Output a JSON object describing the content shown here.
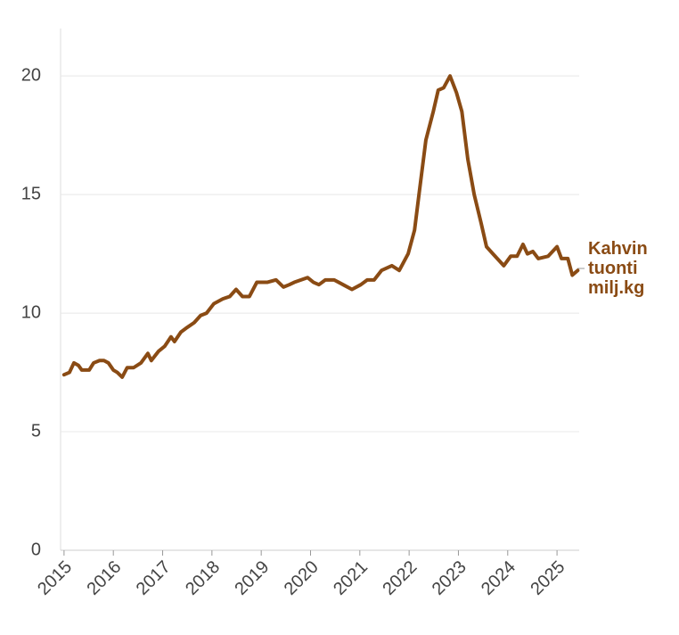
{
  "chart_data": {
    "type": "line",
    "x": [
      2015.0,
      2015.11,
      2015.2,
      2015.29,
      2015.36,
      2015.51,
      2015.6,
      2015.72,
      2015.81,
      2015.9,
      2016.0,
      2016.08,
      2016.18,
      2016.28,
      2016.41,
      2016.56,
      2016.7,
      2016.77,
      2016.92,
      2017.04,
      2017.17,
      2017.24,
      2017.37,
      2017.5,
      2017.64,
      2017.77,
      2017.89,
      2018.04,
      2018.22,
      2018.36,
      2018.49,
      2018.62,
      2018.76,
      2018.91,
      2019.12,
      2019.3,
      2019.45,
      2019.57,
      2019.67,
      2019.94,
      2020.06,
      2020.17,
      2020.3,
      2020.48,
      2020.66,
      2020.84,
      2021.02,
      2021.15,
      2021.29,
      2021.44,
      2021.65,
      2021.8,
      2021.98,
      2022.11,
      2022.2,
      2022.34,
      2022.49,
      2022.59,
      2022.7,
      2022.83,
      2022.96,
      2023.07,
      2023.19,
      2023.32,
      2023.46,
      2023.57,
      2023.7,
      2023.92,
      2024.06,
      2024.19,
      2024.31,
      2024.4,
      2024.51,
      2024.62,
      2024.82,
      2025.0,
      2025.09,
      2025.22,
      2025.31,
      2025.42
    ],
    "series": [
      {
        "name": "Kahvin tuonti milj.kg",
        "color": "#8a4b14",
        "values": [
          7.4,
          7.5,
          7.9,
          7.8,
          7.6,
          7.6,
          7.9,
          8.0,
          8.0,
          7.9,
          7.6,
          7.5,
          7.3,
          7.7,
          7.7,
          7.9,
          8.3,
          8.0,
          8.4,
          8.6,
          9.0,
          8.8,
          9.2,
          9.4,
          9.6,
          9.9,
          10.0,
          10.4,
          10.6,
          10.7,
          11.0,
          10.7,
          10.7,
          11.3,
          11.3,
          11.4,
          11.1,
          11.2,
          11.3,
          11.5,
          11.3,
          11.2,
          11.4,
          11.4,
          11.2,
          11.0,
          11.2,
          11.4,
          11.4,
          11.8,
          12.0,
          11.8,
          12.5,
          13.5,
          15.0,
          17.3,
          18.5,
          19.4,
          19.5,
          20.0,
          19.3,
          18.5,
          16.5,
          15.0,
          13.8,
          12.8,
          12.5,
          12.0,
          12.4,
          12.4,
          12.9,
          12.5,
          12.6,
          12.3,
          12.4,
          12.8,
          12.3,
          12.3,
          11.6,
          11.8
        ]
      }
    ],
    "xlim": [
      2014.93,
      2025.45
    ],
    "xticks": [
      2015,
      2016,
      2017,
      2018,
      2019,
      2020,
      2021,
      2022,
      2023,
      2024,
      2025
    ],
    "ylim": [
      0,
      22
    ],
    "yticks": [
      0,
      5,
      10,
      15,
      20
    ],
    "grid": true
  }
}
